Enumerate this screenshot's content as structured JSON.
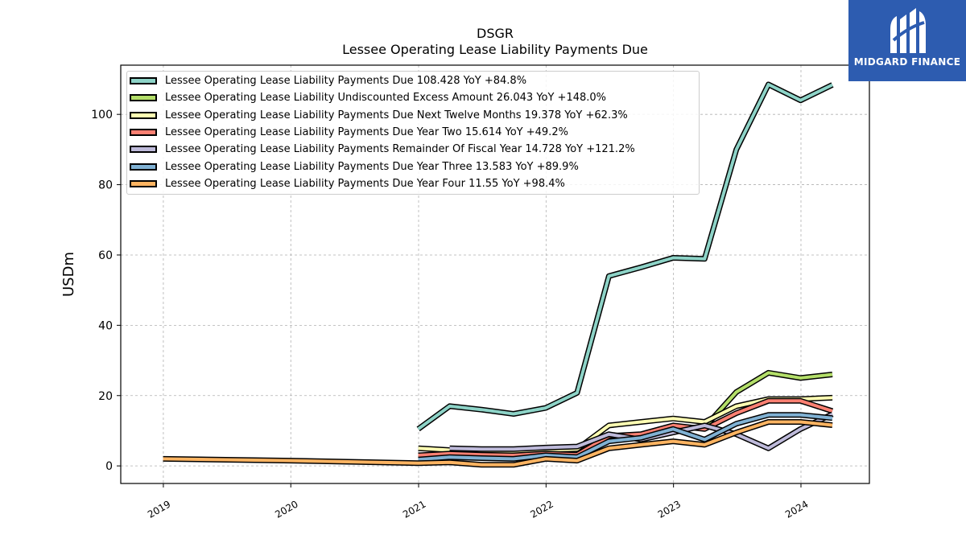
{
  "header": {
    "ticker": "DSGR",
    "title": "Lessee Operating Lease Liability Payments Due"
  },
  "logo": {
    "text": "MIDGARD FINANCE",
    "icon": "midgard-logo-icon",
    "background": "#2d5cb0"
  },
  "chart_data": {
    "type": "line",
    "title": "Lessee Operating Lease Liability Payments Due",
    "ylabel": "USDm",
    "xlabel": "",
    "xlim": [
      "2018-09-01",
      "2024-07-15"
    ],
    "ylim": [
      -5,
      114
    ],
    "x_ticks": [
      "2019",
      "2020",
      "2021",
      "2022",
      "2023",
      "2024"
    ],
    "y_ticks": [
      0,
      20,
      40,
      60,
      80,
      100
    ],
    "grid": true,
    "legend_position": "top-left",
    "series": [
      {
        "name": "Lessee Operating Lease Liability Payments Due  108.428 YoY +84.8%",
        "color": "#8dd3c7",
        "points": [
          [
            "2020-12-31",
            10.5
          ],
          [
            "2021-03-31",
            17.0
          ],
          [
            "2021-06-30",
            16.0
          ],
          [
            "2021-09-30",
            14.8
          ],
          [
            "2021-12-31",
            16.5
          ],
          [
            "2022-03-31",
            20.8
          ],
          [
            "2022-06-30",
            54.0
          ],
          [
            "2022-09-30",
            56.5
          ],
          [
            "2022-12-31",
            59.2
          ],
          [
            "2023-03-31",
            58.9
          ],
          [
            "2023-06-30",
            90.0
          ],
          [
            "2023-09-30",
            108.5
          ],
          [
            "2023-12-31",
            104.0
          ],
          [
            "2024-03-31",
            108.4
          ]
        ]
      },
      {
        "name": "Lessee Operating Lease Liability Undiscounted Excess Amount  26.043 YoY +148.0%",
        "color": "#b3de69",
        "points": [
          [
            "2022-12-31",
            10.5
          ],
          [
            "2023-03-31",
            11.0
          ],
          [
            "2023-06-30",
            21.0
          ],
          [
            "2023-09-30",
            26.5
          ],
          [
            "2023-12-31",
            25.0
          ],
          [
            "2024-03-31",
            26.0
          ]
        ]
      },
      {
        "name": "Lessee Operating Lease Liability Payments Due Next Twelve Months  19.378 YoY +62.3%",
        "color": "#ffffb3",
        "points": [
          [
            "2020-12-31",
            5.0
          ],
          [
            "2021-03-31",
            4.5
          ],
          [
            "2021-06-30",
            4.2
          ],
          [
            "2021-09-30",
            4.0
          ],
          [
            "2021-12-31",
            4.5
          ],
          [
            "2022-03-31",
            4.8
          ],
          [
            "2022-06-30",
            11.5
          ],
          [
            "2022-09-30",
            12.5
          ],
          [
            "2022-12-31",
            13.5
          ],
          [
            "2023-03-31",
            12.5
          ],
          [
            "2023-06-30",
            17.0
          ],
          [
            "2023-09-30",
            19.0
          ],
          [
            "2023-12-31",
            19.0
          ],
          [
            "2024-03-31",
            19.4
          ]
        ]
      },
      {
        "name": "Lessee Operating Lease Liability Payments Due Year Two  15.614 YoY +49.2%",
        "color": "#fb8072",
        "points": [
          [
            "2020-12-31",
            3.0
          ],
          [
            "2021-03-31",
            3.5
          ],
          [
            "2021-06-30",
            3.2
          ],
          [
            "2021-09-30",
            3.0
          ],
          [
            "2021-12-31",
            3.5
          ],
          [
            "2022-03-31",
            3.2
          ],
          [
            "2022-06-30",
            8.5
          ],
          [
            "2022-09-30",
            9.0
          ],
          [
            "2022-12-31",
            11.5
          ],
          [
            "2023-03-31",
            10.5
          ],
          [
            "2023-06-30",
            15.0
          ],
          [
            "2023-09-30",
            18.5
          ],
          [
            "2023-12-31",
            18.5
          ],
          [
            "2024-03-31",
            15.6
          ]
        ]
      },
      {
        "name": "Lessee Operating Lease Liability Payments Remainder Of Fiscal Year  14.728 YoY +121.2%",
        "color": "#bebada",
        "points": [
          [
            "2021-03-31",
            5.0
          ],
          [
            "2021-06-30",
            4.8
          ],
          [
            "2021-09-30",
            4.8
          ],
          [
            "2021-12-31",
            5.2
          ],
          [
            "2022-03-31",
            5.5
          ],
          [
            "2022-06-30",
            9.0
          ],
          [
            "2022-09-30",
            7.5
          ],
          [
            "2022-12-31",
            9.5
          ],
          [
            "2023-03-31",
            11.5
          ],
          [
            "2023-06-30",
            9.0
          ],
          [
            "2023-09-30",
            5.0
          ],
          [
            "2023-12-31",
            10.5
          ],
          [
            "2024-03-31",
            14.7
          ]
        ]
      },
      {
        "name": "Lessee Operating Lease Liability Payments Due Year Three  13.583 YoY +89.9%",
        "color": "#80b1d3",
        "points": [
          [
            "2020-12-31",
            1.8
          ],
          [
            "2021-03-31",
            2.5
          ],
          [
            "2021-06-30",
            2.2
          ],
          [
            "2021-09-30",
            2.0
          ],
          [
            "2021-12-31",
            3.0
          ],
          [
            "2022-03-31",
            2.5
          ],
          [
            "2022-06-30",
            7.0
          ],
          [
            "2022-09-30",
            8.0
          ],
          [
            "2022-12-31",
            10.5
          ],
          [
            "2023-03-31",
            7.5
          ],
          [
            "2023-06-30",
            12.0
          ],
          [
            "2023-09-30",
            14.5
          ],
          [
            "2023-12-31",
            14.5
          ],
          [
            "2024-03-31",
            13.6
          ]
        ]
      },
      {
        "name": "Lessee Operating Lease Liability Payments Due Year Four  11.55 YoY +98.4%",
        "color": "#fdb462",
        "points": [
          [
            "2018-12-31",
            2.0
          ],
          [
            "2019-12-31",
            1.5
          ],
          [
            "2020-12-31",
            0.8
          ],
          [
            "2021-03-31",
            1.0
          ],
          [
            "2021-06-30",
            0.3
          ],
          [
            "2021-09-30",
            0.3
          ],
          [
            "2021-12-31",
            2.0
          ],
          [
            "2022-03-31",
            1.5
          ],
          [
            "2022-06-30",
            5.0
          ],
          [
            "2022-09-30",
            6.0
          ],
          [
            "2022-12-31",
            7.0
          ],
          [
            "2023-03-31",
            6.0
          ],
          [
            "2023-06-30",
            9.5
          ],
          [
            "2023-09-30",
            12.5
          ],
          [
            "2023-12-31",
            12.5
          ],
          [
            "2024-03-31",
            11.6
          ]
        ]
      }
    ]
  }
}
